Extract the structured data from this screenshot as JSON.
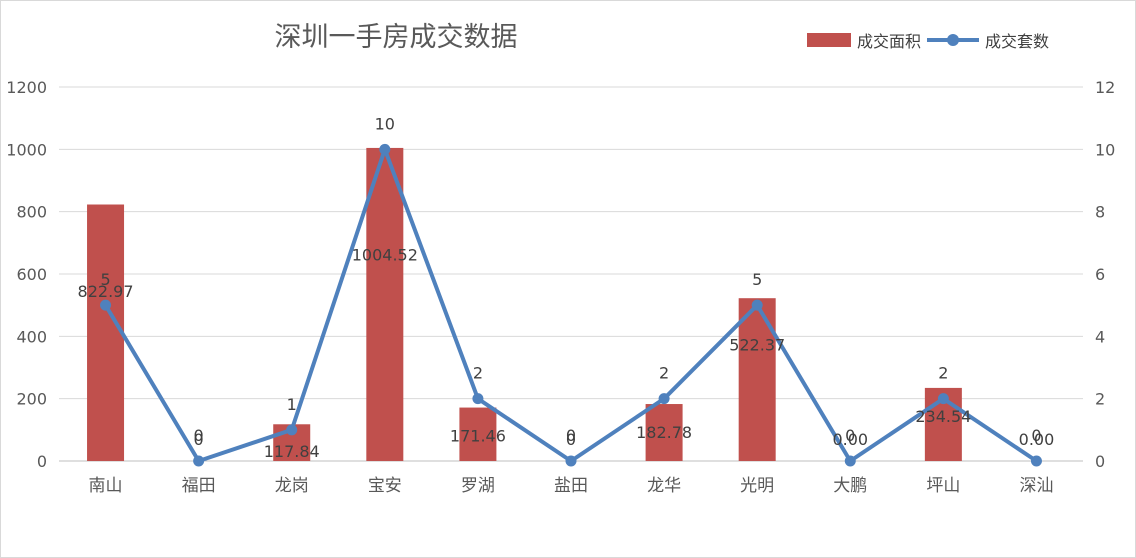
{
  "chart_data": {
    "type": "bar+line",
    "title": "深圳一手房成交数据",
    "categories": [
      "南山",
      "福田",
      "龙岗",
      "宝安",
      "罗湖",
      "盐田",
      "龙华",
      "光明",
      "大鹏",
      "坪山",
      "深汕"
    ],
    "series": [
      {
        "name": "成交面积",
        "type": "bar",
        "axis": "left",
        "values": [
          822.97,
          0,
          117.84,
          1004.52,
          171.46,
          0,
          182.78,
          522.37,
          0,
          234.54,
          0
        ],
        "labels": [
          "822.97",
          "0",
          "117.84",
          "1004.52",
          "171.46",
          "0",
          "182.78",
          "522.37",
          "0.00",
          "234.54",
          "0.00"
        ],
        "color": "#c0504d"
      },
      {
        "name": "成交套数",
        "type": "line",
        "axis": "right",
        "values": [
          5,
          0,
          1,
          10,
          2,
          0,
          2,
          5,
          0,
          2,
          0
        ],
        "labels": [
          "5",
          "0",
          "1",
          "10",
          "2",
          "0",
          "2",
          "5",
          "0",
          "2",
          "0"
        ],
        "color": "#4f81bd"
      }
    ],
    "y_left": {
      "range": [
        0,
        1200
      ],
      "ticks": [
        "0",
        "200",
        "400",
        "600",
        "800",
        "1000",
        "1200"
      ]
    },
    "y_right": {
      "range": [
        0,
        12
      ],
      "ticks": [
        "0",
        "2",
        "4",
        "6",
        "8",
        "10",
        "12"
      ]
    },
    "grid": true,
    "legend_position": "top-right"
  }
}
